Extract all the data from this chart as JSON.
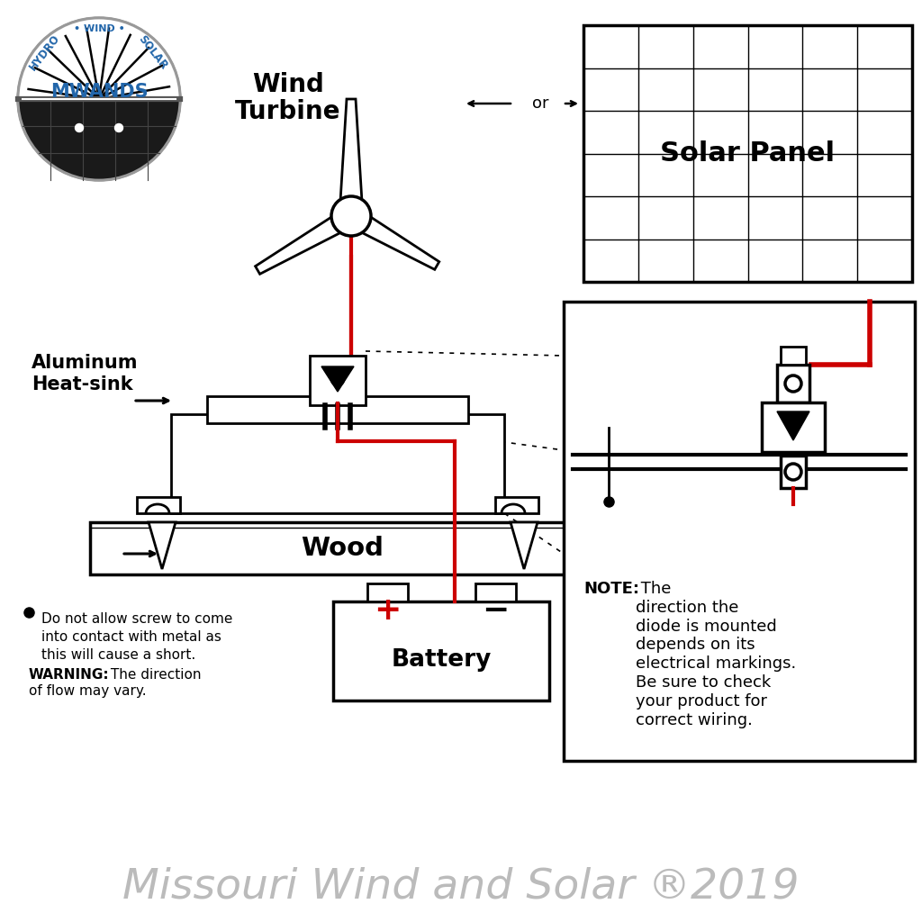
{
  "title": "Missouri Wind and Solar ®2019",
  "title_color": "#bbbbbb",
  "title_fontsize": 34,
  "bg_color": "#ffffff",
  "wind_turbine_label": "Wind\nTurbine",
  "solar_panel_label": "Solar Panel",
  "wood_label": "Wood",
  "battery_label": "Battery",
  "heatsink_label": "Aluminum\nHeat-sink",
  "note_text_plain": " The\ndirection the\ndiode is mounted\ndepends on its\nelectrical markings.\nBe sure to check\nyour product for\ncorrect wiring.",
  "note_bold": "NOTE:",
  "warning_line1": "Do not allow screw to come",
  "warning_line2": "into contact with metal as",
  "warning_line3": "this will cause a short.",
  "warning_bold": "WARNING:",
  "warning_rest": " The direction",
  "warning_last": "of flow may vary.",
  "line_color": "#000000",
  "wire_color": "#cc0000",
  "mwands_blue": "#2266aa",
  "logo_gray": "#888888",
  "logo_dark": "#111111"
}
